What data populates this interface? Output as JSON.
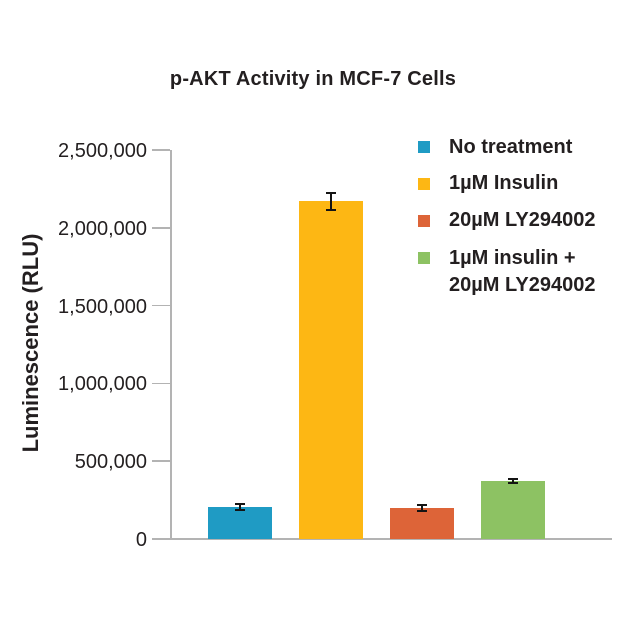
{
  "chart_data": {
    "type": "bar",
    "title": "p-AKT Activity in MCF-7 Cells",
    "xlabel": "",
    "ylabel": "Luminescence (RLU)",
    "ylim": [
      0,
      2500000
    ],
    "grid": false,
    "legend_position": "top-right",
    "axis_color": "#b3b3b3",
    "error_bar_color": "#141414",
    "text_color": "#231f20",
    "yticks": [
      {
        "value": 0,
        "label": "0"
      },
      {
        "value": 500000,
        "label": "500,000"
      },
      {
        "value": 1000000,
        "label": "1,000,000"
      },
      {
        "value": 1500000,
        "label": "1,500,000"
      },
      {
        "value": 2000000,
        "label": "2,000,000"
      },
      {
        "value": 2500000,
        "label": "2,500,000"
      }
    ],
    "series": [
      {
        "name": "No treatment",
        "legend_lines": [
          "No treatment"
        ],
        "color": "#1f9bc4",
        "value": 205000,
        "error": 20000
      },
      {
        "name": "1µM Insulin",
        "legend_lines": [
          "1µM Insulin"
        ],
        "color": "#fdb714",
        "value": 2170000,
        "error": 55000
      },
      {
        "name": "20µM LY294002",
        "legend_lines": [
          "20µM LY294002"
        ],
        "color": "#dd6438",
        "value": 200000,
        "error": 20000
      },
      {
        "name": "1µM insulin + 20µM LY294002",
        "legend_lines": [
          "1µM insulin +",
          "20µM LY294002"
        ],
        "color": "#8dc263",
        "value": 372000,
        "error": 12000
      }
    ]
  }
}
